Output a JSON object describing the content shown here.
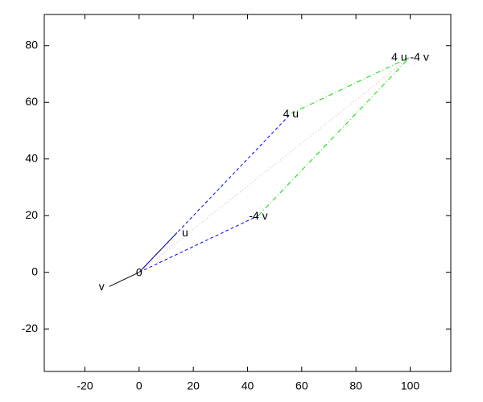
{
  "chart_data": {
    "type": "line",
    "xlim": [
      -35,
      115
    ],
    "ylim": [
      -35,
      91
    ],
    "xticks": [
      -20,
      0,
      20,
      40,
      60,
      80,
      100
    ],
    "yticks": [
      -20,
      0,
      20,
      40,
      60,
      80
    ],
    "series": [
      {
        "color": "#000000",
        "style": "solid",
        "x": [
          0,
          14
        ],
        "values": [
          0,
          14
        ]
      },
      {
        "color": "#000000",
        "style": "solid",
        "x": [
          0,
          -11
        ],
        "values": [
          0,
          -5
        ]
      },
      {
        "color": "#0000ff",
        "style": "dashed",
        "x": [
          0,
          56
        ],
        "values": [
          0,
          56
        ]
      },
      {
        "color": "#0000ff",
        "style": "dashed",
        "x": [
          0,
          44
        ],
        "values": [
          0,
          20
        ]
      },
      {
        "color": "#00dd00",
        "style": "dashdot",
        "x": [
          56,
          100
        ],
        "values": [
          56,
          76
        ]
      },
      {
        "color": "#00dd00",
        "style": "dashdot",
        "x": [
          44,
          100
        ],
        "values": [
          20,
          76
        ]
      },
      {
        "color": "#e0a0a0",
        "style": "dotted",
        "x": [
          0,
          100
        ],
        "values": [
          0,
          76
        ]
      }
    ],
    "annotations": [
      {
        "text": "0",
        "x": 0,
        "y": 0,
        "align": "center"
      },
      {
        "text": "u",
        "x": 14,
        "y": 14,
        "align": "left"
      },
      {
        "text": "v",
        "x": -11,
        "y": -5,
        "align": "right"
      },
      {
        "text": "4 u",
        "x": 56,
        "y": 56,
        "align": "center"
      },
      {
        "text": "-4 v",
        "x": 44,
        "y": 20,
        "align": "center"
      },
      {
        "text": "4 u -4 v",
        "x": 100,
        "y": 76,
        "align": "center"
      }
    ]
  }
}
